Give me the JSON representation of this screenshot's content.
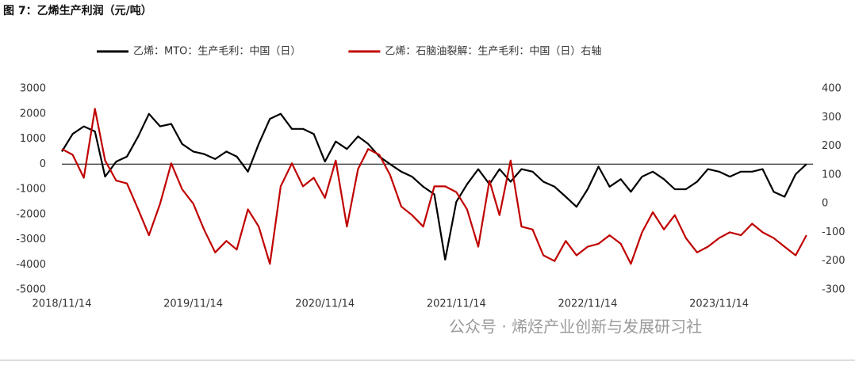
{
  "chart_data": {
    "type": "line",
    "title": "图 7：乙烯生产利润（元/吨）",
    "watermark": "公众号 · 烯烃产业创新与发展研习社",
    "x": [
      "2018/11/14",
      "2018/12/14",
      "2019/01/14",
      "2019/02/14",
      "2019/03/14",
      "2019/04/14",
      "2019/05/14",
      "2019/06/14",
      "2019/07/14",
      "2019/08/14",
      "2019/09/14",
      "2019/10/14",
      "2019/11/14",
      "2019/12/14",
      "2020/01/14",
      "2020/02/14",
      "2020/03/14",
      "2020/04/14",
      "2020/05/14",
      "2020/06/14",
      "2020/07/14",
      "2020/08/14",
      "2020/09/14",
      "2020/10/14",
      "2020/11/14",
      "2020/12/14",
      "2021/01/14",
      "2021/02/14",
      "2021/03/14",
      "2021/04/14",
      "2021/05/14",
      "2021/06/14",
      "2021/07/14",
      "2021/08/14",
      "2021/09/14",
      "2021/10/14",
      "2021/11/14",
      "2021/12/14",
      "2022/01/14",
      "2022/02/14",
      "2022/03/14",
      "2022/04/14",
      "2022/05/14",
      "2022/06/14",
      "2022/07/14",
      "2022/08/14",
      "2022/09/14",
      "2022/10/14",
      "2022/11/14",
      "2022/12/14",
      "2023/01/14",
      "2023/02/14",
      "2023/03/14",
      "2023/04/14",
      "2023/05/14",
      "2023/06/14",
      "2023/07/14",
      "2023/08/14",
      "2023/09/14",
      "2023/10/14",
      "2023/11/14",
      "2023/12/14",
      "2024/01/14",
      "2024/02/14",
      "2024/03/14",
      "2024/04/14",
      "2024/05/14",
      "2024/06/14",
      "2024/07/14"
    ],
    "series": [
      {
        "name": "乙烯：MTO：生产毛利：中国（日）",
        "color": "#000000",
        "values": [
          500,
          1200,
          1500,
          1300,
          -500,
          100,
          300,
          1100,
          2000,
          1500,
          1600,
          800,
          500,
          400,
          200,
          500,
          300,
          -300,
          800,
          1800,
          2000,
          1400,
          1400,
          1200,
          100,
          900,
          600,
          1100,
          800,
          300,
          0,
          -300,
          -500,
          -900,
          -1200,
          -3800,
          -1500,
          -800,
          -200,
          -800,
          -200,
          -700,
          -200,
          -300,
          -700,
          -900,
          -1300,
          -1700,
          -1000,
          -100,
          -900,
          -600,
          -1100,
          -500,
          -300,
          -600,
          -1000,
          -1000,
          -700,
          -200,
          -300,
          -500,
          -300,
          -300,
          -200,
          -1100,
          -1300,
          -400,
          0
        ]
      },
      {
        "name": "乙烯：石脑油裂解：生产毛利：中国（日）右轴",
        "color": "#c00000",
        "axis": "y2",
        "values": [
          190,
          170,
          90,
          330,
          150,
          80,
          70,
          -20,
          -110,
          0,
          140,
          50,
          0,
          -90,
          -170,
          -130,
          -160,
          -20,
          -80,
          -210,
          60,
          140,
          60,
          90,
          20,
          150,
          -80,
          120,
          190,
          170,
          100,
          -10,
          -40,
          -80,
          60,
          60,
          40,
          -20,
          -150,
          80,
          -40,
          150,
          -80,
          -90,
          -180,
          -200,
          -130,
          -180,
          -150,
          -140,
          -110,
          -140,
          -210,
          -100,
          -30,
          -90,
          -40,
          -120,
          -170,
          -150,
          -120,
          -100,
          -110,
          -70,
          -100,
          -120,
          -150,
          -180,
          -110
        ]
      }
    ],
    "xlim": [
      "2018/11/14",
      "2024/08/01"
    ],
    "xticks": [
      "2018/11/14",
      "2019/11/14",
      "2020/11/14",
      "2021/11/14",
      "2022/11/14",
      "2023/11/14"
    ],
    "ylim": [
      -5000,
      3000
    ],
    "yticks": [
      -5000,
      -4000,
      -3000,
      -2000,
      -1000,
      0,
      1000,
      2000,
      3000
    ],
    "y2lim": [
      -300,
      400
    ],
    "y2ticks": [
      -300,
      -200,
      -100,
      0,
      100,
      200,
      300,
      400
    ],
    "grid": false
  }
}
